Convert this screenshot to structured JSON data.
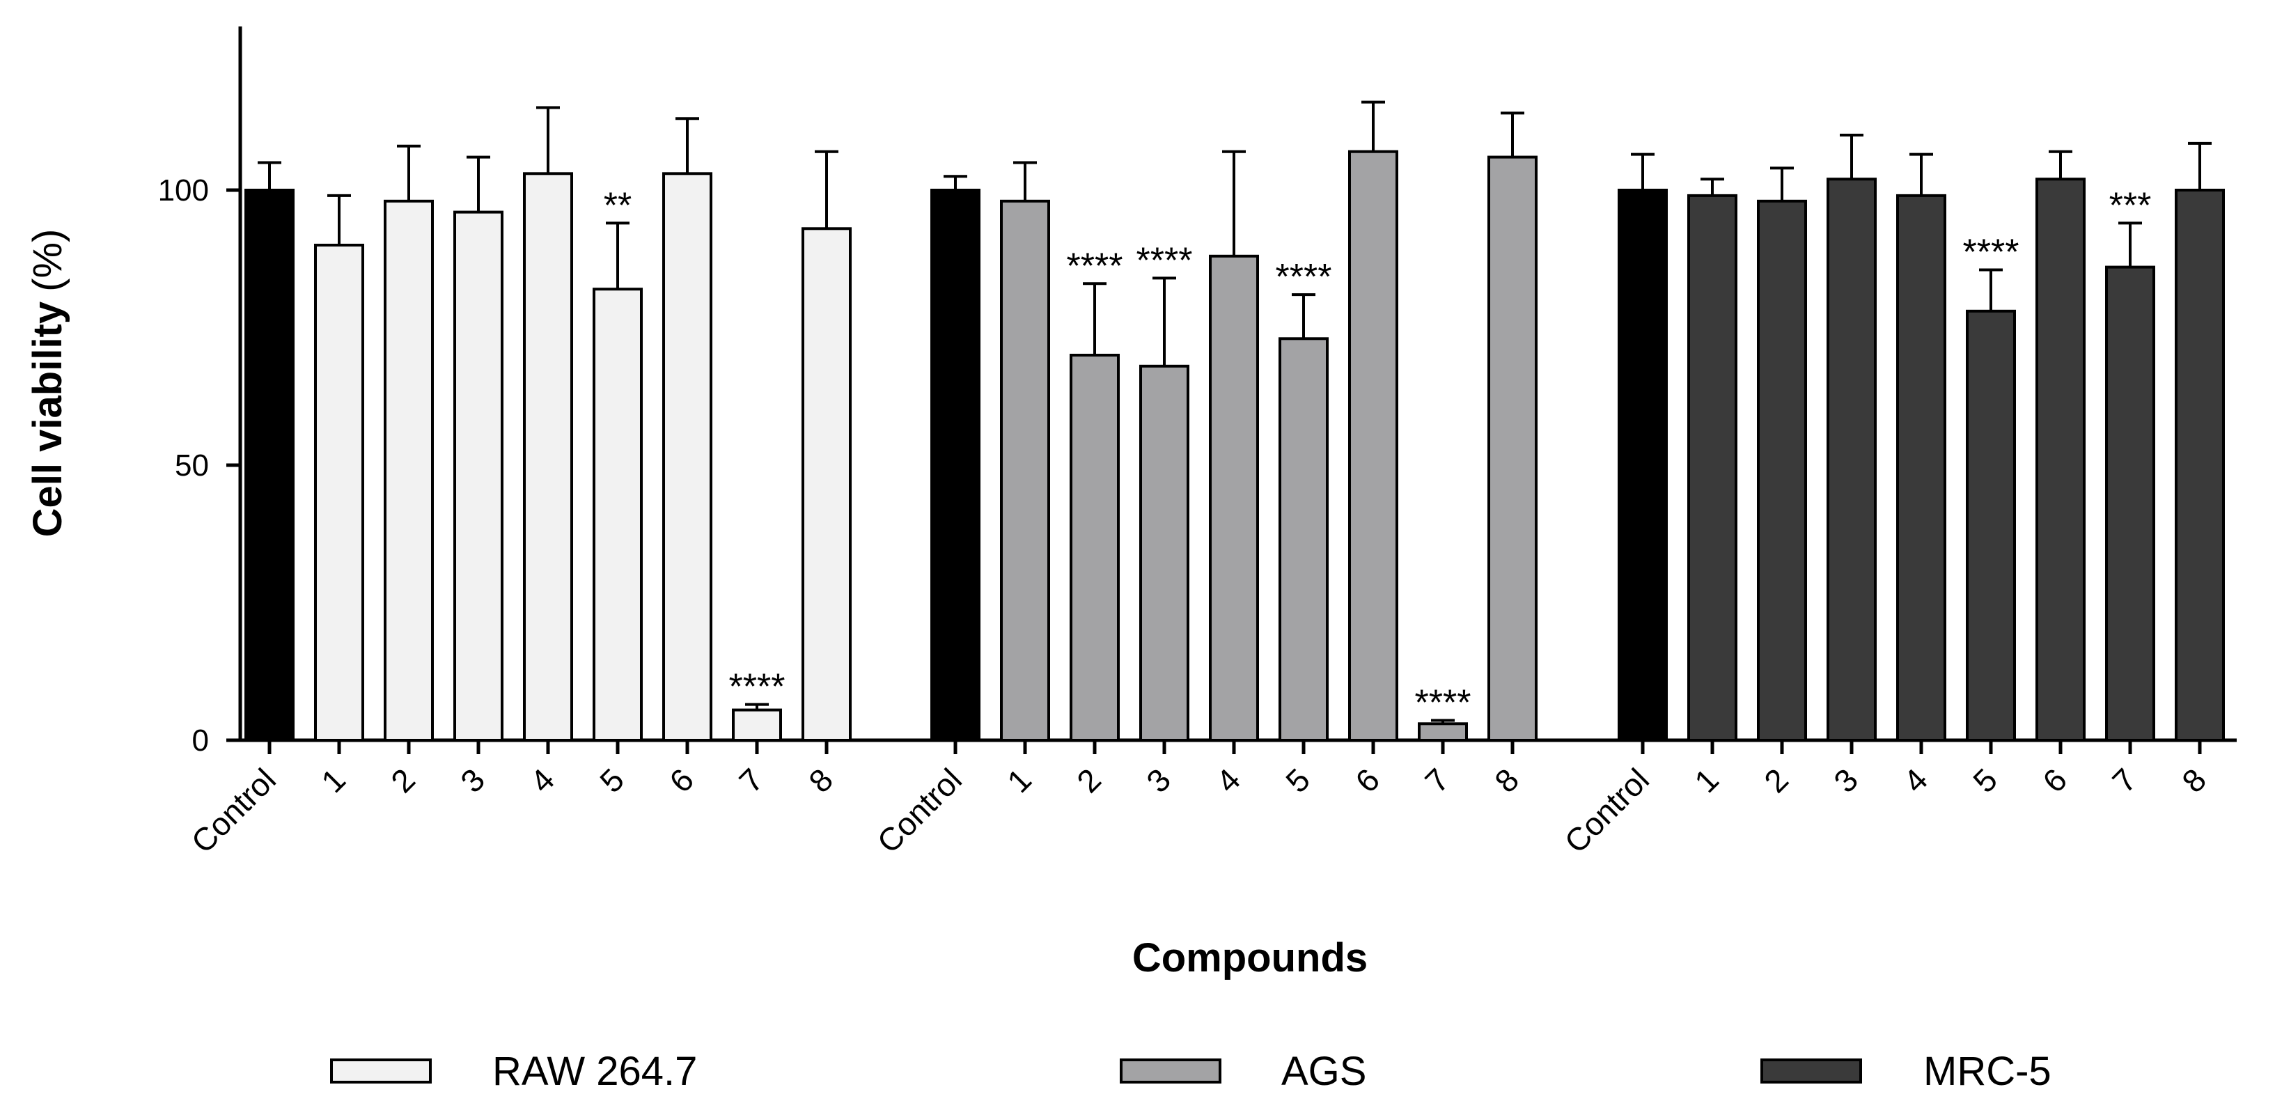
{
  "chart_data": {
    "type": "bar",
    "title": "",
    "xlabel": "Compounds",
    "ylabel": "Cell viability",
    "ylabel_unit": "(%)",
    "ylim": [
      0,
      128
    ],
    "yticks": [
      0,
      50,
      100
    ],
    "categories": [
      "Control",
      "1",
      "2",
      "3",
      "4",
      "5",
      "6",
      "7",
      "8"
    ],
    "control_color": "#000000",
    "series": [
      {
        "name": "RAW 264.7",
        "color": "#f2f2f2",
        "values": [
          100,
          90,
          98,
          96,
          103,
          82,
          103,
          5.5,
          93
        ],
        "errors": [
          5,
          9,
          10,
          10,
          12,
          12,
          10,
          1,
          14
        ],
        "significance": [
          "",
          "",
          "",
          "",
          "",
          "**",
          "",
          "****",
          ""
        ]
      },
      {
        "name": "AGS",
        "color": "#a3a3a5",
        "values": [
          100,
          98,
          70,
          68,
          88,
          73,
          107,
          3,
          106
        ],
        "errors": [
          2.5,
          7,
          13,
          16,
          19,
          8,
          9,
          0.6,
          8
        ],
        "significance": [
          "",
          "",
          "****",
          "****",
          "",
          "****",
          "",
          "****",
          ""
        ]
      },
      {
        "name": "MRC-5",
        "color": "#3a3a3a",
        "values": [
          100,
          99,
          98,
          102,
          99,
          78,
          102,
          86,
          100
        ],
        "errors": [
          6.5,
          3,
          6,
          8,
          7.5,
          7.5,
          5,
          8,
          8.5
        ],
        "significance": [
          "",
          "",
          "",
          "",
          "",
          "****",
          "",
          "***",
          ""
        ]
      }
    ],
    "legend_position": "bottom"
  }
}
